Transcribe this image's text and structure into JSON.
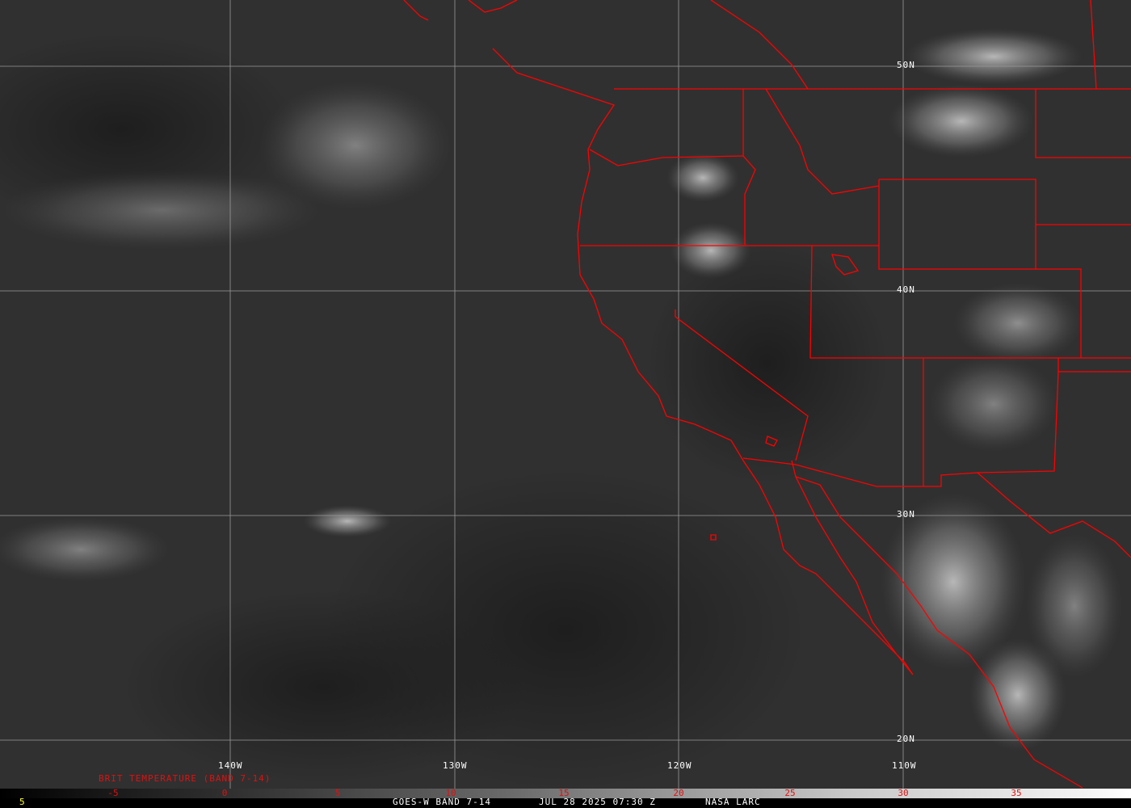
{
  "map": {
    "longitude_labels": [
      "140W",
      "130W",
      "120W",
      "110W"
    ],
    "latitude_labels": [
      "50N",
      "40N",
      "30N",
      "20N"
    ],
    "boundary_color": "#ff0000",
    "grid_color": "#9a9a9a"
  },
  "colorbar": {
    "title": "BRIT TEMPERATURE (BAND 7-14)",
    "ticks": [
      "-5",
      "0",
      "5",
      "10",
      "15",
      "20",
      "25",
      "30",
      "35"
    ],
    "tick_color": "#e01010"
  },
  "footer": {
    "frame_number": "5",
    "satellite": "GOES-W BAND 7-14",
    "datetime": "JUL 28 2025 07:30 Z",
    "source": "NASA LARC"
  }
}
